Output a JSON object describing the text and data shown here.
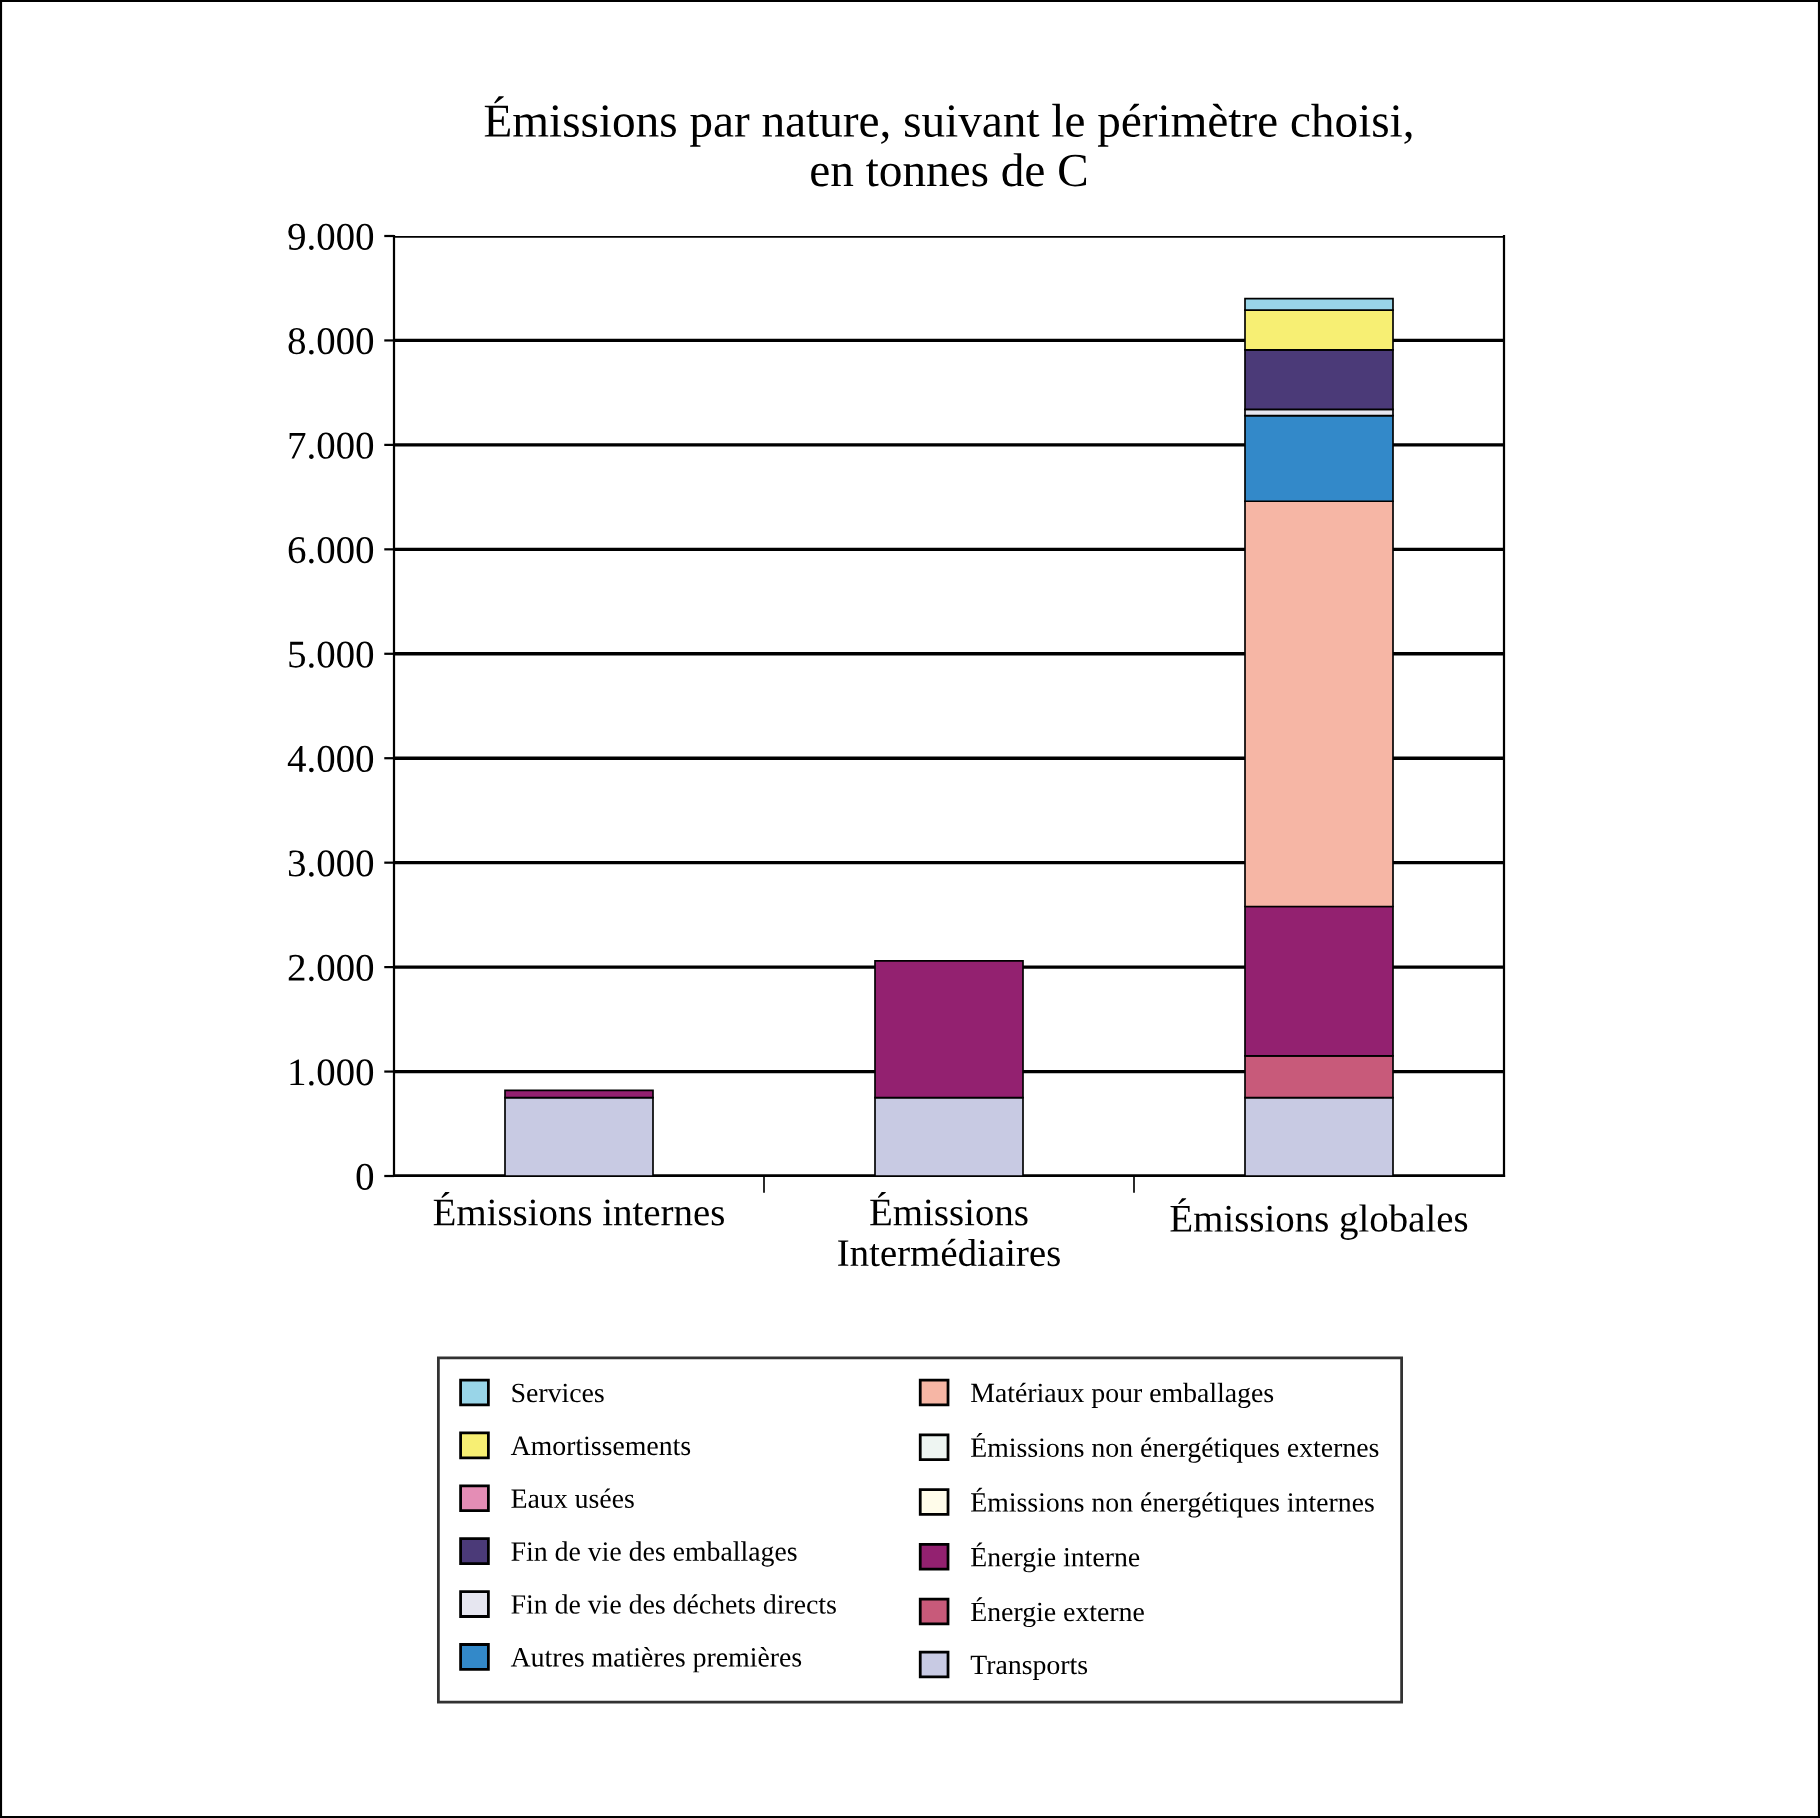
{
  "chart_data": {
    "type": "bar",
    "stacked": true,
    "title": "Émissions par nature, suivant le périmètre choisi,\nen tonnes de C",
    "categories": [
      "Émissions internes",
      "Émissions\nIntermédiaires",
      "Émissions globales"
    ],
    "series": [
      {
        "name": "Transports",
        "color": "#c8cae3",
        "values": [
          750,
          750,
          750
        ]
      },
      {
        "name": "Énergie externe",
        "color": "#c85a7a",
        "values": [
          null,
          null,
          400
        ]
      },
      {
        "name": "Énergie interne",
        "color": "#932170",
        "values": [
          70,
          1310,
          1430
        ]
      },
      {
        "name": "Émissions non énergétiques internes",
        "color": "#fffcea",
        "values": [
          null,
          null,
          null
        ]
      },
      {
        "name": "Émissions non énergétiques externes",
        "color": "#eef5f2",
        "values": [
          null,
          null,
          null
        ]
      },
      {
        "name": "Matériaux pour emballages",
        "color": "#f6b6a5",
        "values": [
          null,
          null,
          3880
        ]
      },
      {
        "name": "Autres matières premières",
        "color": "#3389c9",
        "values": [
          null,
          null,
          820
        ]
      },
      {
        "name": "Fin de vie des déchets directs",
        "color": "#e6e6f0",
        "values": [
          null,
          null,
          60
        ]
      },
      {
        "name": "Fin de vie des emballages",
        "color": "#4b3a78",
        "values": [
          null,
          null,
          570
        ]
      },
      {
        "name": "Eaux usées",
        "color": "#e48db5",
        "values": [
          null,
          null,
          null
        ]
      },
      {
        "name": "Amortissements",
        "color": "#f7ef73",
        "values": [
          null,
          null,
          380
        ]
      },
      {
        "name": "Services",
        "color": "#99d5e8",
        "values": [
          null,
          null,
          110
        ]
      }
    ],
    "ylim": [
      0,
      9000
    ],
    "yticks": [
      {
        "value": 0,
        "label": "0"
      },
      {
        "value": 1000,
        "label": "1.000"
      },
      {
        "value": 2000,
        "label": "2.000"
      },
      {
        "value": 3000,
        "label": "3.000"
      },
      {
        "value": 4000,
        "label": "4.000"
      },
      {
        "value": 5000,
        "label": "5.000"
      },
      {
        "value": 6000,
        "label": "6.000"
      },
      {
        "value": 7000,
        "label": "7.000"
      },
      {
        "value": 8000,
        "label": "8.000"
      },
      {
        "value": 9000,
        "label": "9.000"
      }
    ],
    "grid": "y",
    "legend": "bottom"
  }
}
